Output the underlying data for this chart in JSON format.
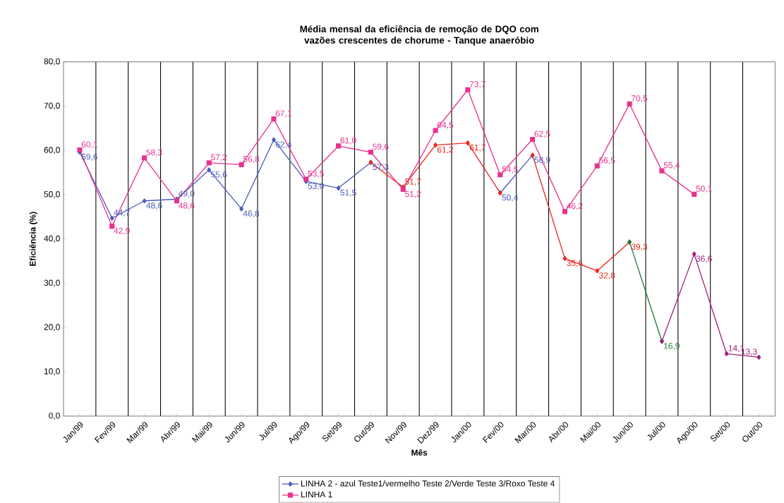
{
  "chart_data": {
    "type": "line",
    "title": "Média mensal da eficiência de remoção de DQO com vazões crescentes de chorume - Tanque anaeróbio",
    "xlabel": "Mês",
    "ylabel": "Eficiência (%)",
    "categories": [
      "Jan/99",
      "Fev/99",
      "Mar/99",
      "Abr/99",
      "Mai/99",
      "Jun/99",
      "Jul/99",
      "Ago/99",
      "Set/99",
      "Out/99",
      "Nov/99",
      "Dez/99",
      "Jan/00",
      "Fev/00",
      "Mar/00",
      "Abr/00",
      "Mai/00",
      "Jun/00",
      "Jul/00",
      "Ago/00",
      "Set/00",
      "Out/00"
    ],
    "ylim": [
      0,
      80
    ],
    "yticks": [
      {
        "value": 0,
        "label": "0,0"
      },
      {
        "value": 10,
        "label": "10,0"
      },
      {
        "value": 20,
        "label": "20,0"
      },
      {
        "value": 30,
        "label": "30,0"
      },
      {
        "value": 40,
        "label": "40,0"
      },
      {
        "value": 50,
        "label": "50,0"
      },
      {
        "value": 60,
        "label": "60,0"
      },
      {
        "value": 70,
        "label": "70,0"
      },
      {
        "value": 80,
        "label": "80,0"
      }
    ],
    "grid": "x",
    "legend": "bottom",
    "line_style": "solid",
    "series": [
      {
        "name": "LINHA 2 - azul Teste1/vermelho Teste 2/Verde Teste 3/Roxo Teste 4",
        "color": "#4a5cb8",
        "marker": "diamond",
        "values": [
          59.6,
          44.7,
          48.6,
          49.0,
          55.6,
          46.8,
          62.4,
          53.0,
          51.5,
          57.3,
          null,
          null,
          null,
          50.4,
          58.9,
          null,
          null,
          null,
          null,
          null,
          null,
          null
        ],
        "value_labels": [
          "59,6",
          "44,7",
          "48,6",
          "49,0",
          "55,6",
          "46,8",
          "62,4",
          "53,0",
          "51,5",
          "57,3",
          null,
          null,
          null,
          "50,4",
          "58,9",
          null,
          null,
          null,
          null,
          null,
          null,
          null
        ]
      },
      {
        "color": "#e8261e",
        "marker": "diamond",
        "values": [
          null,
          null,
          null,
          null,
          null,
          null,
          null,
          null,
          null,
          57.3,
          51.7,
          61.2,
          61.7,
          50.4,
          null,
          null,
          null,
          null,
          null,
          null,
          null,
          null
        ],
        "value_labels": [
          null,
          null,
          null,
          null,
          null,
          null,
          null,
          null,
          null,
          null,
          "51,7",
          "61,2",
          "61,7",
          null,
          null,
          null,
          null,
          null,
          null,
          null,
          null,
          null
        ]
      },
      {
        "color": "#e8261e",
        "marker": "diamond",
        "values": [
          null,
          null,
          null,
          null,
          null,
          null,
          null,
          null,
          null,
          null,
          null,
          null,
          null,
          null,
          58.9,
          35.6,
          32.8,
          39.3,
          null,
          null,
          null,
          null
        ],
        "value_labels": [
          null,
          null,
          null,
          null,
          null,
          null,
          null,
          null,
          null,
          null,
          null,
          null,
          null,
          null,
          null,
          "35,6",
          "32,8",
          "39,3",
          null,
          null,
          null,
          null
        ]
      },
      {
        "color": "#1e7a3a",
        "marker": "diamond",
        "values": [
          null,
          null,
          null,
          null,
          null,
          null,
          null,
          null,
          null,
          null,
          null,
          null,
          null,
          null,
          null,
          null,
          null,
          39.3,
          16.9,
          null,
          null,
          null
        ],
        "value_labels": [
          null,
          null,
          null,
          null,
          null,
          null,
          null,
          null,
          null,
          null,
          null,
          null,
          null,
          null,
          null,
          null,
          null,
          null,
          "16,9",
          null,
          null,
          null
        ]
      },
      {
        "color": "#a0207a",
        "marker": "diamond",
        "values": [
          null,
          null,
          null,
          null,
          null,
          null,
          null,
          null,
          null,
          null,
          null,
          null,
          null,
          null,
          null,
          null,
          null,
          null,
          16.9,
          36.6,
          14.1,
          13.3
        ],
        "value_labels": [
          null,
          null,
          null,
          null,
          null,
          null,
          null,
          null,
          null,
          null,
          null,
          null,
          null,
          null,
          null,
          null,
          null,
          null,
          null,
          "36,6",
          "14,1",
          "13,3"
        ]
      },
      {
        "name": "LINHA 1",
        "color": "#e8338f",
        "marker": "square",
        "values": [
          60.1,
          42.9,
          58.3,
          48.6,
          57.2,
          56.8,
          67.1,
          53.5,
          61.0,
          59.6,
          51.2,
          64.5,
          73.7,
          54.5,
          62.5,
          46.2,
          56.5,
          70.5,
          55.4,
          50.1,
          null,
          null
        ],
        "value_labels": [
          "60,1",
          "42,9",
          "58,3",
          "48,6",
          "57,2",
          "56,8",
          "67,1",
          "53,5",
          "61,0",
          "59,6",
          "51,2",
          "64,5",
          "73,7",
          "54,5",
          "62,5",
          "46,2",
          "56,5",
          "70,5",
          "55,4",
          "50,1",
          null,
          null
        ]
      }
    ]
  }
}
